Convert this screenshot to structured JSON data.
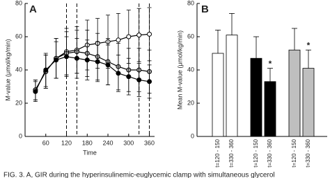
{
  "chart_data": [
    {
      "type": "line",
      "title": "A",
      "xlabel": "Time",
      "ylabel": "M-value (μmol/kg/min)",
      "x": [
        30,
        60,
        90,
        120,
        150,
        180,
        210,
        240,
        270,
        300,
        330,
        360
      ],
      "series": [
        {
          "color": "#ffffff",
          "values": [
            28,
            39,
            47,
            51,
            52,
            55,
            56,
            57,
            58,
            60,
            61,
            61.5
          ],
          "errors": [
            6,
            10,
            12,
            14,
            14,
            15,
            15,
            16,
            16,
            16,
            16,
            16
          ]
        },
        {
          "color": "#a6a6a6",
          "values": [
            28,
            39,
            47,
            50,
            51,
            50,
            48,
            45,
            42,
            40,
            40,
            39
          ],
          "errors": [
            6,
            10,
            12,
            13,
            13,
            14,
            14,
            14,
            14,
            13,
            13,
            13
          ]
        },
        {
          "color": "#000000",
          "values": [
            27,
            40,
            46,
            48,
            47,
            46,
            45,
            43,
            38,
            36,
            34,
            33
          ],
          "errors": [
            6,
            10,
            11,
            12,
            12,
            12,
            12,
            12,
            11,
            11,
            10,
            10
          ]
        }
      ],
      "vlines": [
        120,
        150,
        330,
        360
      ],
      "xlim": [
        0,
        375
      ],
      "xticks": [
        60,
        120,
        180,
        240,
        300,
        360
      ],
      "ylim": [
        0,
        80
      ],
      "yticks": [
        0,
        20,
        40,
        60,
        80
      ]
    },
    {
      "type": "bar",
      "title": "B",
      "ylabel": "Mean M-value (μmol/kg/min)",
      "categories": [
        "t=120 - 150",
        "t=330 - 360",
        "t=120 - 150",
        "t=330 - 360",
        "t=120 - 150",
        "t=330 - 360"
      ],
      "values": [
        50,
        61,
        47,
        33,
        52,
        41
      ],
      "errors": [
        14,
        13,
        13,
        8,
        13,
        11
      ],
      "colors": [
        "#ffffff",
        "#ffffff",
        "#000000",
        "#000000",
        "#bfbfbf",
        "#bfbfbf"
      ],
      "value_annotations": [
        null,
        null,
        null,
        "*",
        null,
        "*"
      ],
      "ylim": [
        0,
        80
      ],
      "yticks": [
        0,
        20,
        40,
        60,
        80
      ]
    }
  ],
  "caption": "FIG. 3. A, GIR during the hyperinsulinemic-euglycemic clamp with simultaneous glycerol"
}
